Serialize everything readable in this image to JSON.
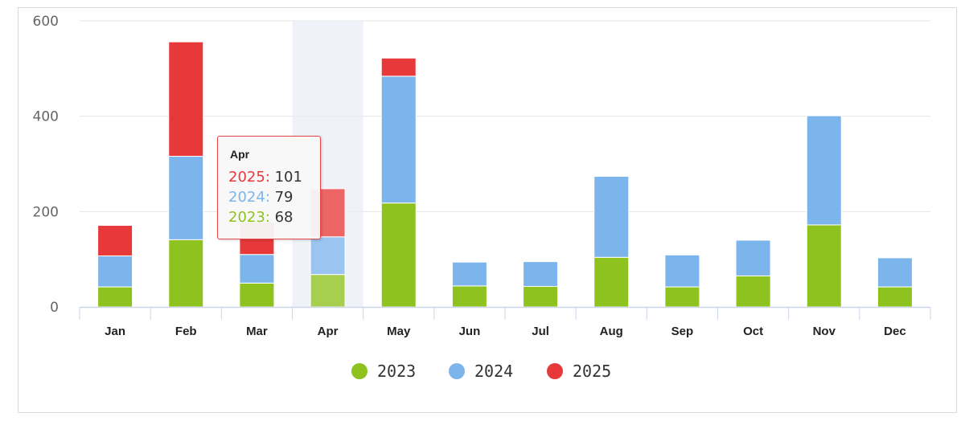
{
  "chart_data": {
    "type": "bar",
    "stacked": true,
    "categories": [
      "Jan",
      "Feb",
      "Mar",
      "Apr",
      "May",
      "Jun",
      "Jul",
      "Aug",
      "Sep",
      "Oct",
      "Nov",
      "Dec"
    ],
    "series": [
      {
        "name": "2023",
        "color": "#8dc21f",
        "values": [
          42,
          141,
          50,
          68,
          218,
          44,
          43,
          104,
          42,
          65,
          172,
          42
        ]
      },
      {
        "name": "2024",
        "color": "#7cb5ec",
        "values": [
          65,
          175,
          60,
          79,
          266,
          50,
          52,
          170,
          67,
          75,
          229,
          61
        ]
      },
      {
        "name": "2025",
        "color": "#e8393a",
        "values": [
          64,
          240,
          68,
          101,
          38,
          0,
          0,
          0,
          0,
          0,
          0,
          0
        ]
      }
    ],
    "ylim": [
      0,
      600
    ],
    "yticks": [
      "0",
      "200",
      "400",
      "600"
    ],
    "grid": true,
    "legend_position": "bottom-center",
    "highlighted_category": "Apr"
  },
  "tooltip": {
    "title": "Apr",
    "rows": [
      {
        "label": "2025",
        "sep": ": ",
        "value": "101",
        "color": "#e8393a"
      },
      {
        "label": "2024",
        "sep": ": ",
        "value": "79",
        "color": "#7cb5ec"
      },
      {
        "label": "2023",
        "sep": ": ",
        "value": "68",
        "color": "#8dc21f"
      }
    ]
  }
}
